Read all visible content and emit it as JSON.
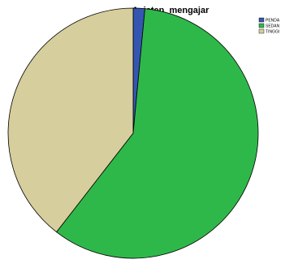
{
  "chart_data": {
    "type": "pie",
    "title": "Asisten_mengajar",
    "categories": [
      "PENDA",
      "SEDAN",
      "TINGGI"
    ],
    "values": [
      1.5,
      59.0,
      39.5
    ],
    "colors": [
      "#3556b0",
      "#2fb84a",
      "#d6ce9c"
    ],
    "legend_position": "top-right"
  }
}
